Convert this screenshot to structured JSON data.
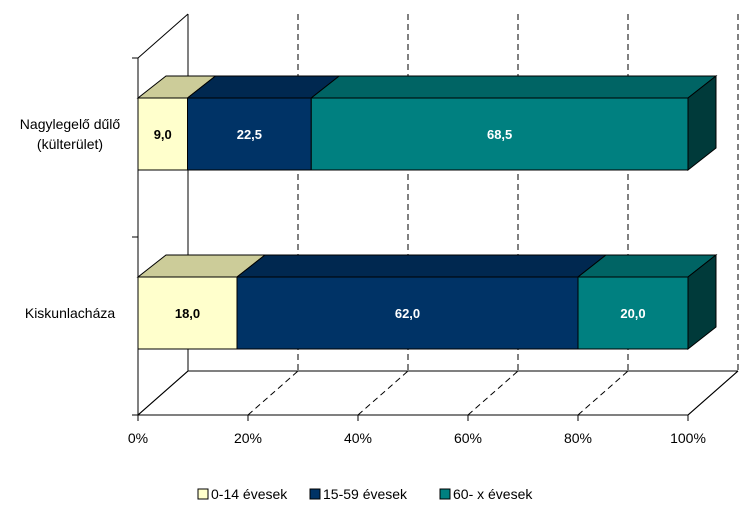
{
  "chart_data": {
    "type": "bar",
    "orientation": "horizontal",
    "stacked": "percent",
    "three_d": true,
    "categories": [
      "Nagylegelő dűlő|(külterület)",
      "Kiskunlacháza"
    ],
    "series": [
      {
        "name": "0-14 évesek",
        "values": [
          9.0,
          18.0
        ],
        "labels": [
          "9,0",
          "18,0"
        ],
        "color": "#FFFFCC",
        "label_color": "#000000"
      },
      {
        "name": "15-59 évesek",
        "values": [
          22.5,
          62.0
        ],
        "labels": [
          "22,5",
          "62,0"
        ],
        "color": "#003366",
        "label_color": "#FFFFFF"
      },
      {
        "name": "60- x évesek",
        "values": [
          68.5,
          20.0
        ],
        "labels": [
          "68,5",
          "20,0"
        ],
        "color": "#008080",
        "label_color": "#FFFFFF"
      }
    ],
    "xlim": [
      0,
      100
    ],
    "x_ticks": [
      0,
      20,
      40,
      60,
      80,
      100
    ],
    "x_tick_labels": [
      "0%",
      "20%",
      "40%",
      "60%",
      "80%",
      "100%"
    ],
    "grid": true,
    "legend_position": "bottom"
  }
}
